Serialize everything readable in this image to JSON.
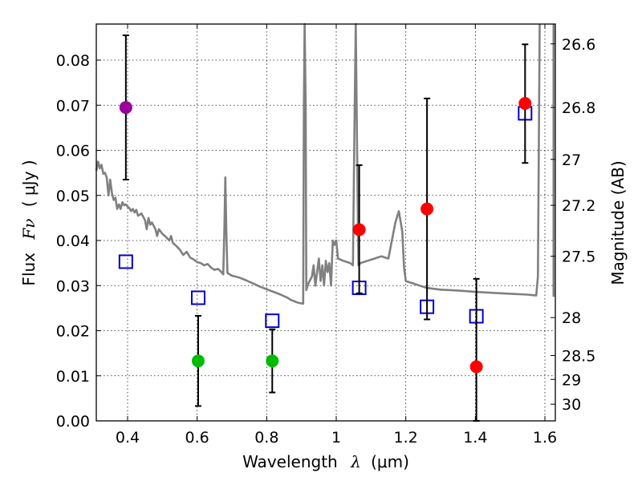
{
  "chart_data": {
    "type": "scatter",
    "xlabel": "Wavelength",
    "xlabel_symbol": "λ",
    "xlabel_unit": "(μm)",
    "ylabel": "Flux",
    "ylabel_symbol": "Fν",
    "ylabel_unit": "( μJy )",
    "ylabel_right": "Magnitude (AB)",
    "xlim": [
      0.31,
      1.63
    ],
    "ylim": [
      0.0,
      0.088
    ],
    "x_ticks": [
      0.4,
      0.6,
      0.8,
      1.0,
      1.2,
      1.4,
      1.6
    ],
    "x_tick_labels": [
      "0.4",
      "0.6",
      "0.8",
      "1",
      "1.2",
      "1.4",
      "1.6"
    ],
    "y_ticks": [
      0.0,
      0.01,
      0.02,
      0.03,
      0.04,
      0.05,
      0.06,
      0.07,
      0.08
    ],
    "y_tick_labels": [
      "0.00",
      "0.01",
      "0.02",
      "0.03",
      "0.04",
      "0.05",
      "0.06",
      "0.07",
      "0.08"
    ],
    "right_ticks": [
      {
        "label": "26.6",
        "flux": 0.0836
      },
      {
        "label": "26.8",
        "flux": 0.0695
      },
      {
        "label": "27",
        "flux": 0.058
      },
      {
        "label": "27.2",
        "flux": 0.0478
      },
      {
        "label": "27.5",
        "flux": 0.0365
      },
      {
        "label": "28",
        "flux": 0.0229
      },
      {
        "label": "28.5",
        "flux": 0.0145
      },
      {
        "label": "29",
        "flux": 0.0092
      },
      {
        "label": "30",
        "flux": 0.0037
      }
    ],
    "grid": true,
    "colors": {
      "purple": "#990099",
      "green": "#00bb00",
      "red": "#ff0000",
      "model_box": "#0000cc",
      "spectrum": "#808080",
      "errorbar": "#000000"
    },
    "photometry": [
      {
        "x": 0.395,
        "y": 0.0695,
        "yerr_low": 0.0535,
        "yerr_high": 0.0855,
        "color": "purple"
      },
      {
        "x": 0.603,
        "y": 0.0133,
        "yerr_low": 0.0033,
        "yerr_high": 0.0233,
        "color": "green"
      },
      {
        "x": 0.816,
        "y": 0.0133,
        "yerr_low": 0.0063,
        "yerr_high": 0.0203,
        "color": "green"
      },
      {
        "x": 1.066,
        "y": 0.0424,
        "yerr_low": 0.0283,
        "yerr_high": 0.0567,
        "color": "red"
      },
      {
        "x": 1.261,
        "y": 0.047,
        "yerr_low": 0.0225,
        "yerr_high": 0.0715,
        "color": "red"
      },
      {
        "x": 1.403,
        "y": 0.012,
        "yerr_low": 0.0,
        "yerr_high": 0.0315,
        "color": "red"
      },
      {
        "x": 1.543,
        "y": 0.0704,
        "yerr_low": 0.0572,
        "yerr_high": 0.0835,
        "color": "red"
      }
    ],
    "model_photometry": [
      {
        "x": 0.395,
        "y": 0.0353
      },
      {
        "x": 0.603,
        "y": 0.0273
      },
      {
        "x": 0.816,
        "y": 0.0222
      },
      {
        "x": 1.066,
        "y": 0.0295
      },
      {
        "x": 1.261,
        "y": 0.0253
      },
      {
        "x": 1.403,
        "y": 0.0232
      },
      {
        "x": 1.543,
        "y": 0.0682
      }
    ],
    "spectrum": [
      [
        0.31,
        0.0555
      ],
      [
        0.315,
        0.0575
      ],
      [
        0.32,
        0.056
      ],
      [
        0.325,
        0.0568
      ],
      [
        0.33,
        0.0548
      ],
      [
        0.335,
        0.055
      ],
      [
        0.34,
        0.054
      ],
      [
        0.345,
        0.05
      ],
      [
        0.35,
        0.0535
      ],
      [
        0.355,
        0.0505
      ],
      [
        0.36,
        0.049
      ],
      [
        0.365,
        0.0495
      ],
      [
        0.37,
        0.047
      ],
      [
        0.375,
        0.048
      ],
      [
        0.38,
        0.047
      ],
      [
        0.385,
        0.0485
      ],
      [
        0.39,
        0.0478
      ],
      [
        0.395,
        0.048
      ],
      [
        0.4,
        0.0475
      ],
      [
        0.405,
        0.0472
      ],
      [
        0.41,
        0.0465
      ],
      [
        0.415,
        0.047
      ],
      [
        0.42,
        0.0462
      ],
      [
        0.425,
        0.0468
      ],
      [
        0.43,
        0.0455
      ],
      [
        0.44,
        0.046
      ],
      [
        0.45,
        0.0445
      ],
      [
        0.455,
        0.0425
      ],
      [
        0.46,
        0.045
      ],
      [
        0.465,
        0.0435
      ],
      [
        0.47,
        0.044
      ],
      [
        0.48,
        0.0425
      ],
      [
        0.485,
        0.041
      ],
      [
        0.49,
        0.0425
      ],
      [
        0.5,
        0.0415
      ],
      [
        0.51,
        0.0408
      ],
      [
        0.52,
        0.04
      ],
      [
        0.525,
        0.041
      ],
      [
        0.53,
        0.0395
      ],
      [
        0.54,
        0.0388
      ],
      [
        0.55,
        0.038
      ],
      [
        0.56,
        0.0368
      ],
      [
        0.57,
        0.0375
      ],
      [
        0.58,
        0.0362
      ],
      [
        0.59,
        0.0358
      ],
      [
        0.6,
        0.0352
      ],
      [
        0.61,
        0.035
      ],
      [
        0.62,
        0.0345
      ],
      [
        0.63,
        0.0348
      ],
      [
        0.64,
        0.034
      ],
      [
        0.65,
        0.0335
      ],
      [
        0.66,
        0.0337
      ],
      [
        0.67,
        0.033
      ],
      [
        0.675,
        0.0325
      ],
      [
        0.678,
        0.0415
      ],
      [
        0.681,
        0.054
      ],
      [
        0.684,
        0.0415
      ],
      [
        0.687,
        0.0328
      ],
      [
        0.7,
        0.0322
      ],
      [
        0.72,
        0.0318
      ],
      [
        0.74,
        0.0312
      ],
      [
        0.76,
        0.0305
      ],
      [
        0.78,
        0.0298
      ],
      [
        0.8,
        0.0292
      ],
      [
        0.82,
        0.0286
      ],
      [
        0.84,
        0.028
      ],
      [
        0.86,
        0.0273
      ],
      [
        0.87,
        0.0268
      ],
      [
        0.88,
        0.0265
      ],
      [
        0.89,
        0.0262
      ],
      [
        0.905,
        0.026
      ],
      [
        0.907,
        0.07
      ],
      [
        0.909,
        0.088
      ],
      [
        0.912,
        0.07
      ],
      [
        0.914,
        0.029
      ],
      [
        0.92,
        0.0305
      ],
      [
        0.93,
        0.032
      ],
      [
        0.935,
        0.0345
      ],
      [
        0.94,
        0.03
      ],
      [
        0.95,
        0.036
      ],
      [
        0.955,
        0.031
      ],
      [
        0.96,
        0.0345
      ],
      [
        0.965,
        0.03
      ],
      [
        0.97,
        0.0355
      ],
      [
        0.975,
        0.033
      ],
      [
        0.98,
        0.035
      ],
      [
        0.985,
        0.03
      ],
      [
        0.99,
        0.04
      ],
      [
        0.995,
        0.039
      ],
      [
        1.0,
        0.04
      ],
      [
        1.005,
        0.036
      ],
      [
        1.02,
        0.0355
      ],
      [
        1.04,
        0.035
      ],
      [
        1.048,
        0.0345
      ],
      [
        1.052,
        0.062
      ],
      [
        1.056,
        0.088
      ],
      [
        1.06,
        0.06
      ],
      [
        1.064,
        0.0345
      ],
      [
        1.07,
        0.035
      ],
      [
        1.09,
        0.0355
      ],
      [
        1.11,
        0.036
      ],
      [
        1.13,
        0.0365
      ],
      [
        1.15,
        0.036
      ],
      [
        1.16,
        0.04
      ],
      [
        1.17,
        0.044
      ],
      [
        1.18,
        0.0465
      ],
      [
        1.19,
        0.042
      ],
      [
        1.195,
        0.034
      ],
      [
        1.2,
        0.031
      ],
      [
        1.22,
        0.0305
      ],
      [
        1.24,
        0.03
      ],
      [
        1.26,
        0.0295
      ],
      [
        1.28,
        0.0293
      ],
      [
        1.3,
        0.0291
      ],
      [
        1.35,
        0.0289
      ],
      [
        1.4,
        0.0286
      ],
      [
        1.45,
        0.0284
      ],
      [
        1.5,
        0.0282
      ],
      [
        1.55,
        0.028
      ],
      [
        1.575,
        0.0278
      ],
      [
        1.58,
        0.032
      ],
      [
        1.585,
        0.088
      ]
    ],
    "spectrum_tail": [
      [
        1.625,
        0.088
      ],
      [
        1.625,
        0.0275
      ]
    ]
  }
}
